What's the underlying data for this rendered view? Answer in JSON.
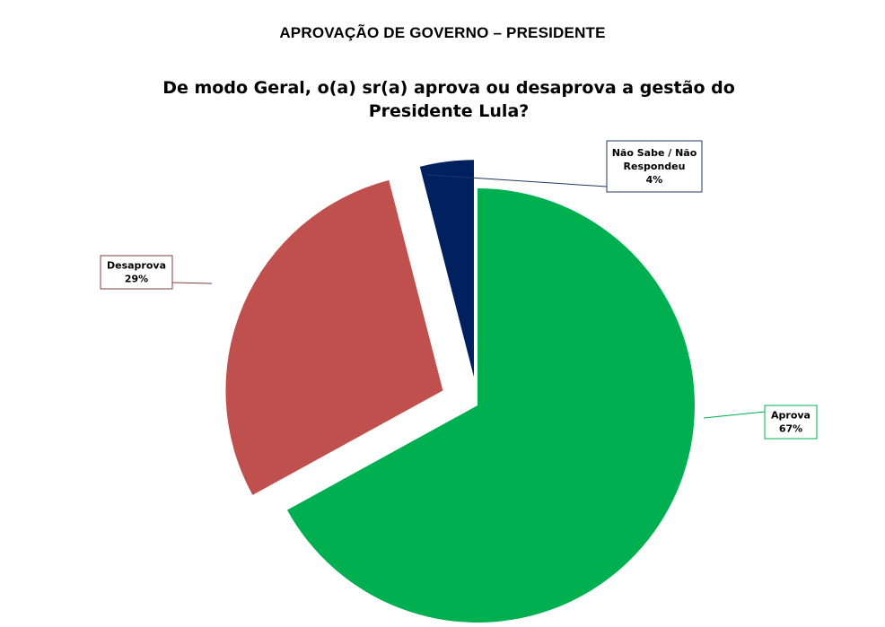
{
  "header": {
    "title": "APROVAÇÃO DE GOVERNO – PRESIDENTE"
  },
  "chart_data": {
    "type": "pie",
    "title": "De modo Geral, o(a) sr(a) aprova ou desaprova a gestão do Presidente Lula?",
    "slices": [
      {
        "label": "Aprova",
        "value": 67,
        "display": "67%",
        "color": "#00B050",
        "exploded": false,
        "label_lines": [
          "Aprova",
          "67%"
        ],
        "border_color": "#00B050"
      },
      {
        "label": "Desaprova",
        "value": 29,
        "display": "29%",
        "color": "#C0504D",
        "exploded": true,
        "label_lines": [
          "Desaprova",
          "29%"
        ],
        "border_color": "#7F3F3D"
      },
      {
        "label": "Não Sabe / Não Respondeu",
        "value": 4,
        "display": "4%",
        "color": "#002060",
        "exploded": true,
        "label_lines": [
          "Não Sabe / Não",
          "Respondeu",
          "4%"
        ],
        "border_color": "#1F3864"
      }
    ],
    "legend": "none"
  }
}
